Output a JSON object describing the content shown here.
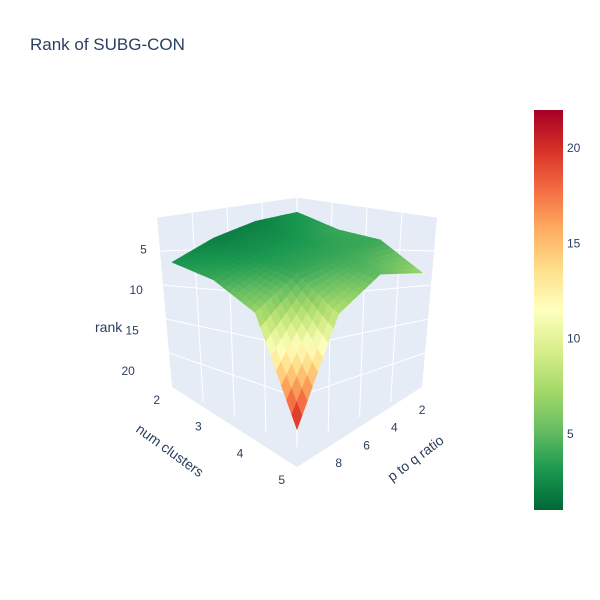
{
  "chart_data": {
    "type": "surface",
    "title": "Rank of SUBG-CON",
    "axes": {
      "x": {
        "label": "p to q ratio",
        "ticks": [
          "2",
          "4",
          "6",
          "8"
        ]
      },
      "y": {
        "label": "num clusters",
        "ticks": [
          "2",
          "3",
          "4",
          "5"
        ]
      },
      "z": {
        "label": "rank",
        "ticks": [
          "5",
          "10",
          "15",
          "20"
        ],
        "reversed": true
      }
    },
    "x": [
      1,
      10
    ],
    "y": [
      2,
      5
    ],
    "z": [
      [
        3,
        2,
        2,
        3
      ],
      [
        4,
        3,
        3,
        4
      ],
      [
        7,
        4,
        4,
        4
      ],
      [
        21,
        8,
        5,
        7
      ]
    ],
    "colorbar": {
      "ticks": [
        "5",
        "10",
        "15",
        "20"
      ],
      "range": [
        1,
        22
      ],
      "colorscale": [
        "#006837",
        "#1a9850",
        "#66bd63",
        "#a6d96a",
        "#d9ef8b",
        "#ffffbf",
        "#fee08b",
        "#fdae61",
        "#f46d43",
        "#d73027",
        "#a50026"
      ]
    }
  }
}
